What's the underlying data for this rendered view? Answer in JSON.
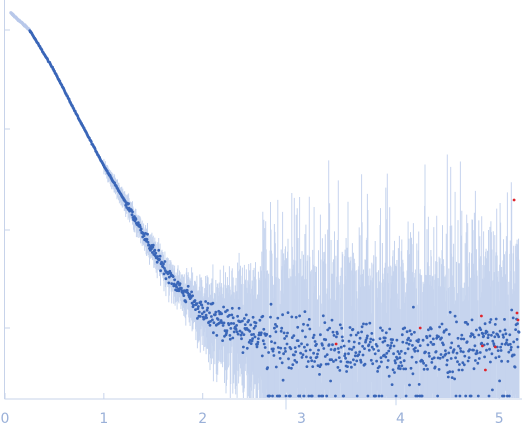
{
  "chart_data": {
    "type": "scatter",
    "title": "",
    "xlabel": "",
    "ylabel": "",
    "xlim": [
      0,
      5.2
    ],
    "x_ticks": [
      "0",
      "1",
      "2",
      "3",
      "4",
      "5"
    ],
    "y_axis": "log",
    "y_ticks_labeled": false,
    "grid": false,
    "legend": "none",
    "colors": {
      "points": "#3a66b8",
      "error_bars": "#c6d4ee",
      "low_q_points": "#b8c8ea",
      "outliers": "#e0242b",
      "axis": "#c7d3ea",
      "tick_labels": "#9ab0d8"
    },
    "series": [
      {
        "profile_note_q": [
          0.05,
          0.25,
          0.5,
          0.75,
          1.0,
          1.25,
          1.5,
          1.75,
          2.0,
          2.25,
          2.5,
          3.0,
          3.5,
          4.0,
          4.5,
          5.0,
          5.2
        ],
        "relative_intensity": [
          1.0,
          0.72,
          0.34,
          0.14,
          0.06,
          0.028,
          0.0125,
          0.0065,
          0.0042,
          0.0032,
          0.0027,
          0.0022,
          0.0021,
          0.0021,
          0.0022,
          0.0024,
          0.0025
        ]
      }
    ],
    "highlighted_outlier_q": [
      3.35,
      4.2,
      4.82,
      4.83,
      4.86,
      4.96,
      5.15,
      5.18,
      5.19
    ]
  }
}
